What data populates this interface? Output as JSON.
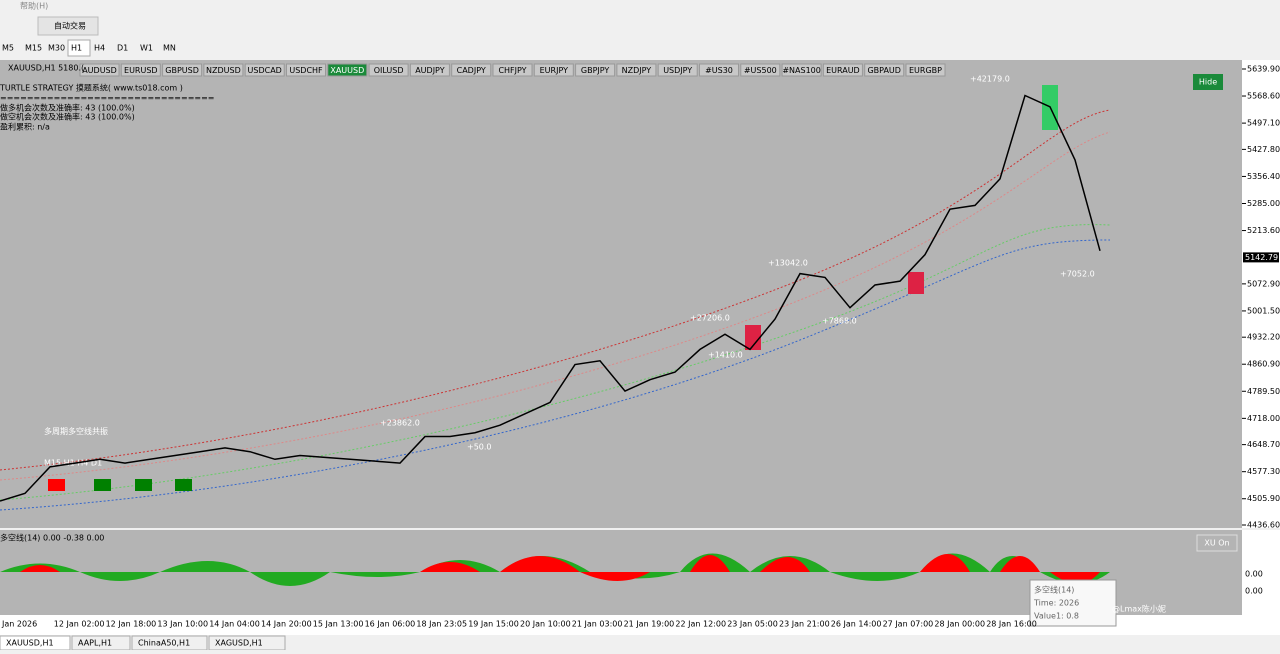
{
  "menu": {
    "help": "帮助(H)"
  },
  "toolbar": {
    "auto_trade": "自动交易"
  },
  "timeframes": [
    "M5",
    "M15",
    "M30",
    "H1",
    "H4",
    "D1",
    "W1",
    "MN"
  ],
  "symbols": [
    "AUDUSD",
    "EURUSD",
    "GBPUSD",
    "NZDUSD",
    "USDCAD",
    "USDCHF",
    "XAUUSD",
    "OILUSD",
    "AUDJPY",
    "CADJPY",
    "CHFJPY",
    "EURJPY",
    "GBPJPY",
    "NZDJPY",
    "USDJPY",
    "#US30",
    "#US500",
    "#NAS100",
    "EURAUD",
    "GBPAUD",
    "EURGBP"
  ],
  "chart": {
    "symbol_line": "XAUUSD,H1  5180.(",
    "info": [
      "TURTLE STRATEGY 摸题系统( www.ts018.com )",
      "================================",
      "做多机会次数及准确率: 43 (100.0%)",
      "做空机会次数及准确率: 43 (100.0%)",
      "盈利累积: n/a"
    ],
    "hide_button": "Hide",
    "overlay_title": "多周期多空线共振",
    "overlay_frames": "M15   H1   H4   D1",
    "trade_labels": [
      "+23862.0",
      "+50.0",
      "+27206.0",
      "+1410.0",
      "+13042.0",
      "+7868.0",
      "+42179.0",
      "+7052.0"
    ],
    "ylim": [
      4436.6,
      5639.9
    ],
    "yticks": [
      {
        "value": 5639.9,
        "label": "5639.90"
      },
      {
        "value": 5568.6,
        "label": "5568.60"
      },
      {
        "value": 5497.1,
        "label": "5497.10"
      },
      {
        "value": 5427.8,
        "label": "5427.80"
      },
      {
        "value": 5356.4,
        "label": "5356.40"
      },
      {
        "value": 5285,
        "label": "5285.00"
      },
      {
        "value": 5213.6,
        "label": "5213.60"
      },
      {
        "value": 5072.9,
        "label": "5072.90"
      },
      {
        "value": 5001.5,
        "label": "5001.50"
      },
      {
        "value": 4932.2,
        "label": "4932.20"
      },
      {
        "value": 4860.9,
        "label": "4860.90"
      },
      {
        "value": 4789.5,
        "label": "4789.50"
      },
      {
        "value": 4718,
        "label": "4718.00"
      },
      {
        "value": 4648.7,
        "label": "4648.70"
      },
      {
        "value": 4577.3,
        "label": "4577.30"
      },
      {
        "value": 4505.9,
        "label": "4505.90"
      },
      {
        "value": 4436.6,
        "label": "4436.60"
      }
    ],
    "current_price": 5142.79,
    "price": [
      4500,
      4520,
      4590,
      4600,
      4610,
      4600,
      4610,
      4620,
      4630,
      4640,
      4630,
      4610,
      4620,
      4615,
      4610,
      4605,
      4600,
      4670,
      4670,
      4680,
      4700,
      4730,
      4760,
      4860,
      4870,
      4790,
      4820,
      4840,
      4900,
      4940,
      4900,
      4980,
      5100,
      5090,
      5010,
      5070,
      5080,
      5150,
      5270,
      5280,
      5350,
      5570,
      5540,
      5400,
      5160
    ],
    "time_labels": [
      "Jan 2026",
      "12 Jan 02:00",
      "12 Jan 18:00",
      "13 Jan 10:00",
      "14 Jan 04:00",
      "14 Jan 20:00",
      "15 Jan 13:00",
      "16 Jan 06:00",
      "18 Jan 23:05",
      "19 Jan 15:00",
      "20 Jan 10:00",
      "21 Jan 03:00",
      "21 Jan 19:00",
      "22 Jan 12:00",
      "23 Jan 05:00",
      "23 Jan 21:00",
      "26 Jan 14:00",
      "27 Jan 07:00",
      "28 Jan 00:00",
      "28 Jan 16:00"
    ]
  },
  "indicator": {
    "label": "多空线(14) 0.00 -0.38 0.00",
    "button": "XU On",
    "axis": [
      "0.00",
      "0.00"
    ],
    "tooltip": [
      "多空线(14)",
      "Time: 2026",
      "Value1: 0.8"
    ]
  },
  "watermark": "@Lmax陈小妮",
  "tabs": [
    "XAUUSD,H1",
    "AAPL,H1",
    "ChinaA50,H1",
    "XAGUSD,H1"
  ]
}
